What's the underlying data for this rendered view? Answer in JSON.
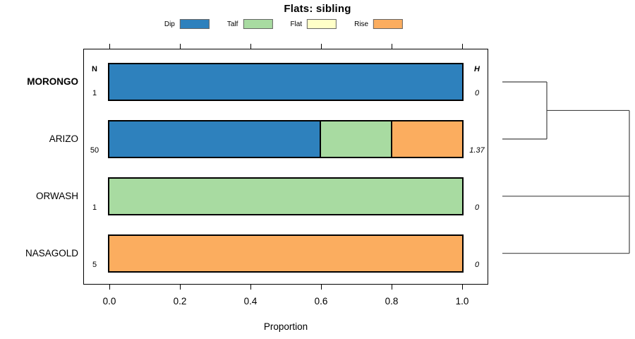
{
  "title": "Flats: sibling",
  "columns": {
    "n_header": "N",
    "h_header": "H"
  },
  "axis": {
    "label": "Proportion",
    "ticks": [
      {
        "label": "0.0",
        "value": 0
      },
      {
        "label": "0.2",
        "value": 0.2
      },
      {
        "label": "0.4",
        "value": 0.4
      },
      {
        "label": "0.6",
        "value": 0.6
      },
      {
        "label": "0.8",
        "value": 0.8
      },
      {
        "label": "1.0",
        "value": 1
      }
    ]
  },
  "legend": {
    "items": [
      {
        "label": "Dip",
        "color": "#2E81BD"
      },
      {
        "label": "Talf",
        "color": "#A8DBA1"
      },
      {
        "label": "Flat",
        "color": "#FFFFC8"
      },
      {
        "label": "Rise",
        "color": "#FBAD5F"
      }
    ]
  },
  "chart_data": {
    "type": "bar",
    "variant": "horizontal_stacked_proportion_with_dendrogram",
    "title": "Flats: sibling",
    "xlabel": "Proportion",
    "xlim": [
      0,
      1
    ],
    "xticks": [
      0,
      0.2,
      0.4,
      0.6,
      0.8,
      1
    ],
    "legend_position": "top",
    "categories": [
      "MORONGO",
      "ARIZO",
      "ORWASH",
      "NASAGOLD"
    ],
    "n_values": [
      1,
      50,
      1,
      5
    ],
    "h_values": [
      0,
      1.37,
      0,
      0
    ],
    "series": [
      {
        "name": "Dip",
        "color": "#2E81BD",
        "values": [
          1,
          0.6,
          0,
          0
        ]
      },
      {
        "name": "Talf",
        "color": "#A8DBA1",
        "values": [
          0,
          0.2,
          1,
          0
        ]
      },
      {
        "name": "Flat",
        "color": "#FFFFC8",
        "values": [
          0,
          0,
          0,
          0
        ]
      },
      {
        "name": "Rise",
        "color": "#FBAD5F",
        "values": [
          0,
          0.2,
          0,
          1
        ]
      }
    ],
    "rows": [
      {
        "label": "MORONGO",
        "emphasis": true,
        "n": "1",
        "h": "0",
        "segments": [
          {
            "name": "Dip",
            "value": 1
          }
        ]
      },
      {
        "label": "ARIZO",
        "emphasis": false,
        "n": "50",
        "h": "1.37",
        "segments": [
          {
            "name": "Dip",
            "value": 0.6
          },
          {
            "name": "Talf",
            "value": 0.2
          },
          {
            "name": "Rise",
            "value": 0.2
          }
        ]
      },
      {
        "label": "ORWASH",
        "emphasis": false,
        "n": "1",
        "h": "0",
        "segments": [
          {
            "name": "Talf",
            "value": 1
          }
        ]
      },
      {
        "label": "NASAGOLD",
        "emphasis": false,
        "n": "5",
        "h": "0",
        "segments": [
          {
            "name": "Rise",
            "value": 1
          }
        ]
      }
    ],
    "dendrogram": {
      "side": "right",
      "structure": "((MORONGO,ARIZO),ORWASH,NASAGOLD)",
      "segments": [
        {
          "orient": "h",
          "row": 0,
          "from": 0,
          "to": 0.35
        },
        {
          "orient": "h",
          "row": 1,
          "from": 0,
          "to": 0.35
        },
        {
          "orient": "v",
          "x": 0.35,
          "rowFrom": 0,
          "rowTo": 1
        },
        {
          "orient": "h",
          "row": 0.5,
          "from": 0.35,
          "to": 1
        },
        {
          "orient": "h",
          "row": 2,
          "from": 0,
          "to": 1
        },
        {
          "orient": "h",
          "row": 3,
          "from": 0,
          "to": 1
        },
        {
          "orient": "v",
          "x": 1,
          "rowFrom": 0.5,
          "rowTo": 3
        }
      ]
    }
  }
}
